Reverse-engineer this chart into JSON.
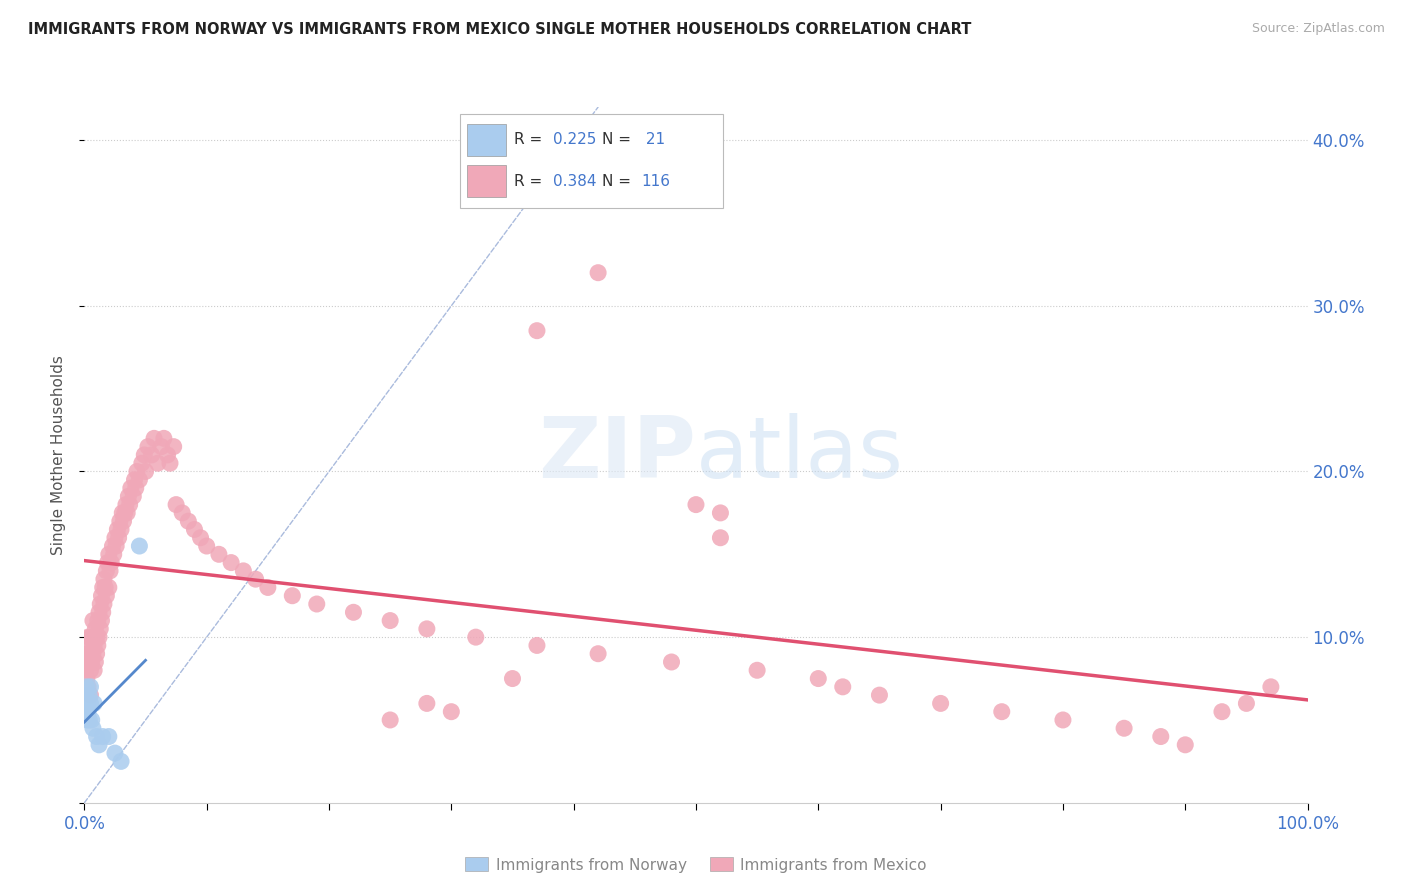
{
  "title": "IMMIGRANTS FROM NORWAY VS IMMIGRANTS FROM MEXICO SINGLE MOTHER HOUSEHOLDS CORRELATION CHART",
  "source": "Source: ZipAtlas.com",
  "ylabel": "Single Mother Households",
  "xlim": [
    0,
    1.0
  ],
  "ylim": [
    0,
    0.42
  ],
  "yticks": [
    0.0,
    0.1,
    0.2,
    0.3,
    0.4
  ],
  "ytick_labels": [
    "",
    "10.0%",
    "20.0%",
    "30.0%",
    "40.0%"
  ],
  "norway_R": 0.225,
  "norway_N": 21,
  "mexico_R": 0.384,
  "mexico_N": 116,
  "norway_color": "#aaccee",
  "mexico_color": "#f0a8b8",
  "norway_line_color": "#5588cc",
  "mexico_line_color": "#e05070",
  "diag_color": "#aabbdd",
  "background_color": "#ffffff",
  "norway_x": [
    0.001,
    0.001,
    0.002,
    0.002,
    0.002,
    0.003,
    0.003,
    0.004,
    0.004,
    0.005,
    0.005,
    0.006,
    0.007,
    0.008,
    0.01,
    0.012,
    0.015,
    0.02,
    0.025,
    0.03,
    0.045
  ],
  "norway_y": [
    0.065,
    0.055,
    0.07,
    0.06,
    0.05,
    0.06,
    0.055,
    0.065,
    0.05,
    0.06,
    0.07,
    0.05,
    0.045,
    0.06,
    0.04,
    0.035,
    0.04,
    0.04,
    0.03,
    0.025,
    0.155
  ],
  "mexico_x": [
    0.001,
    0.001,
    0.002,
    0.002,
    0.003,
    0.003,
    0.004,
    0.004,
    0.005,
    0.005,
    0.005,
    0.006,
    0.006,
    0.007,
    0.007,
    0.008,
    0.008,
    0.009,
    0.009,
    0.01,
    0.01,
    0.011,
    0.011,
    0.012,
    0.012,
    0.013,
    0.013,
    0.014,
    0.014,
    0.015,
    0.015,
    0.016,
    0.016,
    0.017,
    0.018,
    0.018,
    0.019,
    0.02,
    0.02,
    0.021,
    0.022,
    0.023,
    0.024,
    0.025,
    0.026,
    0.027,
    0.028,
    0.029,
    0.03,
    0.031,
    0.032,
    0.033,
    0.034,
    0.035,
    0.036,
    0.037,
    0.038,
    0.04,
    0.041,
    0.042,
    0.043,
    0.045,
    0.047,
    0.049,
    0.05,
    0.052,
    0.055,
    0.057,
    0.06,
    0.063,
    0.065,
    0.068,
    0.07,
    0.073,
    0.075,
    0.08,
    0.085,
    0.09,
    0.095,
    0.1,
    0.11,
    0.12,
    0.13,
    0.14,
    0.15,
    0.17,
    0.19,
    0.22,
    0.25,
    0.28,
    0.32,
    0.37,
    0.42,
    0.48,
    0.5,
    0.52,
    0.55,
    0.6,
    0.62,
    0.65,
    0.7,
    0.75,
    0.8,
    0.85,
    0.88,
    0.9,
    0.93,
    0.95,
    0.97,
    0.52,
    0.37,
    0.42,
    0.28,
    0.35,
    0.25,
    0.3
  ],
  "mexico_y": [
    0.08,
    0.09,
    0.075,
    0.095,
    0.07,
    0.1,
    0.085,
    0.09,
    0.08,
    0.1,
    0.065,
    0.085,
    0.1,
    0.09,
    0.11,
    0.08,
    0.095,
    0.085,
    0.105,
    0.09,
    0.1,
    0.095,
    0.11,
    0.1,
    0.115,
    0.105,
    0.12,
    0.11,
    0.125,
    0.115,
    0.13,
    0.12,
    0.135,
    0.13,
    0.14,
    0.125,
    0.145,
    0.13,
    0.15,
    0.14,
    0.145,
    0.155,
    0.15,
    0.16,
    0.155,
    0.165,
    0.16,
    0.17,
    0.165,
    0.175,
    0.17,
    0.175,
    0.18,
    0.175,
    0.185,
    0.18,
    0.19,
    0.185,
    0.195,
    0.19,
    0.2,
    0.195,
    0.205,
    0.21,
    0.2,
    0.215,
    0.21,
    0.22,
    0.205,
    0.215,
    0.22,
    0.21,
    0.205,
    0.215,
    0.18,
    0.175,
    0.17,
    0.165,
    0.16,
    0.155,
    0.15,
    0.145,
    0.14,
    0.135,
    0.13,
    0.125,
    0.12,
    0.115,
    0.11,
    0.105,
    0.1,
    0.095,
    0.09,
    0.085,
    0.18,
    0.175,
    0.08,
    0.075,
    0.07,
    0.065,
    0.06,
    0.055,
    0.05,
    0.045,
    0.04,
    0.035,
    0.055,
    0.06,
    0.07,
    0.16,
    0.285,
    0.32,
    0.06,
    0.075,
    0.05,
    0.055
  ]
}
